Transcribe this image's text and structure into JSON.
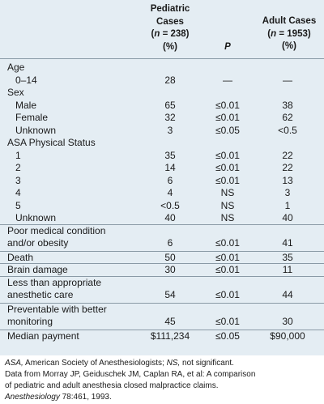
{
  "header": {
    "pediatric_line1": "Pediatric",
    "pediatric_line2": "Cases",
    "pediatric_n_prefix": "(",
    "pediatric_n_var": "n",
    "pediatric_n_value": " = 238)",
    "pediatric_unit": "(%)",
    "p_label": "P",
    "adult_line1": "Adult Cases",
    "adult_n_prefix": "(",
    "adult_n_var": "n",
    "adult_n_value": " = 1953)",
    "adult_unit": "(%)"
  },
  "rows": [
    {
      "label": "Age",
      "indent": false,
      "ped": "",
      "p": "",
      "adult": ""
    },
    {
      "label": "0–14",
      "indent": true,
      "ped": "28",
      "p": "—",
      "adult": "—"
    },
    {
      "label": "Sex",
      "indent": false,
      "ped": "",
      "p": "",
      "adult": ""
    },
    {
      "label": "Male",
      "indent": true,
      "ped": "65",
      "p": "≤0.01",
      "adult": "38"
    },
    {
      "label": "Female",
      "indent": true,
      "ped": "32",
      "p": "≤0.01",
      "adult": "62"
    },
    {
      "label": "Unknown",
      "indent": true,
      "ped": "3",
      "p": "≤0.05",
      "adult": "<0.5"
    },
    {
      "label": "ASA Physical Status",
      "indent": false,
      "ped": "",
      "p": "",
      "adult": ""
    },
    {
      "label": "1",
      "indent": true,
      "ped": "35",
      "p": "≤0.01",
      "adult": "22"
    },
    {
      "label": "2",
      "indent": true,
      "ped": "14",
      "p": "≤0.01",
      "adult": "22"
    },
    {
      "label": "3",
      "indent": true,
      "ped": "6",
      "p": "≤0.01",
      "adult": "13"
    },
    {
      "label": "4",
      "indent": true,
      "ped": "4",
      "p": "NS",
      "adult": "3"
    },
    {
      "label": "5",
      "indent": true,
      "ped": "<0.5",
      "p": "NS",
      "adult": "1"
    },
    {
      "label": "Unknown",
      "indent": true,
      "ped": "40",
      "p": "NS",
      "adult": "40"
    },
    {
      "label": "Poor medical condition",
      "label2": "and/or obesity",
      "indent": false,
      "ped": "6",
      "p": "≤0.01",
      "adult": "41"
    },
    {
      "label": "Death",
      "indent": false,
      "ped": "50",
      "p": "≤0.01",
      "adult": "35"
    },
    {
      "label": "Brain damage",
      "indent": false,
      "ped": "30",
      "p": "≤0.01",
      "adult": "11"
    },
    {
      "label": "Less than appropriate",
      "label2": "anesthetic care",
      "indent": false,
      "ped": "54",
      "p": "≤0.01",
      "adult": "44"
    },
    {
      "label": "Preventable with better",
      "label2": "monitoring",
      "indent": false,
      "ped": "45",
      "p": "≤0.01",
      "adult": "30"
    },
    {
      "label": "Median payment",
      "indent": false,
      "ped": "$111,234",
      "p": "≤0.05",
      "adult": "$90,000"
    }
  ],
  "footnote": {
    "abbr_asa": "ASA,",
    "abbr_asa_text": " American Society of Anesthesiologists; ",
    "abbr_ns": "NS,",
    "abbr_ns_text": " not significant.",
    "source_line1": "Data from Morray JP, Geiduschek JM, Caplan RA, et al: A comparison",
    "source_line2": "of pediatric and adult anesthesia closed malpractice claims.",
    "journal": "Anesthesiology",
    "citation": " 78:461, 1993."
  }
}
